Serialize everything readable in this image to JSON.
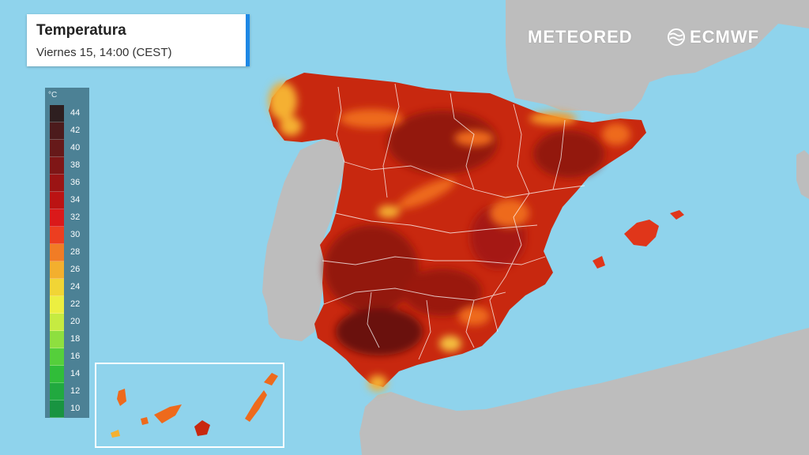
{
  "header": {
    "title": "Temperatura",
    "subtitle": "Viernes 15, 14:00 (CEST)"
  },
  "branding": {
    "meteored": "METEORED",
    "ecmwf": "ECMWF",
    "ecmwf_icon": "ecmwf-logo-icon"
  },
  "legend": {
    "unit": "°C",
    "items": [
      {
        "label": "44",
        "color": "#2b1a1a"
      },
      {
        "label": "42",
        "color": "#4a1616"
      },
      {
        "label": "40",
        "color": "#651313"
      },
      {
        "label": "38",
        "color": "#7f1010"
      },
      {
        "label": "36",
        "color": "#9c0e0e"
      },
      {
        "label": "34",
        "color": "#bd0d0d"
      },
      {
        "label": "32",
        "color": "#dd1414"
      },
      {
        "label": "30",
        "color": "#f03a1a"
      },
      {
        "label": "28",
        "color": "#f57a1f"
      },
      {
        "label": "26",
        "color": "#f7ae28"
      },
      {
        "label": "24",
        "color": "#f5d630"
      },
      {
        "label": "22",
        "color": "#f0f03c"
      },
      {
        "label": "20",
        "color": "#c8ec3c"
      },
      {
        "label": "18",
        "color": "#8ee03a"
      },
      {
        "label": "16",
        "color": "#54cf36"
      },
      {
        "label": "14",
        "color": "#2dbd34"
      },
      {
        "label": "12",
        "color": "#1ea83a"
      },
      {
        "label": "10",
        "color": "#16923c"
      }
    ]
  },
  "colors": {
    "sea": "#8fd3ec",
    "land": "#bdbdbd",
    "heat_main": "#c8280f",
    "heat_dark": "#8a1210",
    "heat_warm": "#ee6a1c",
    "heat_mild": "#f5b030",
    "accent": "#1e88e5"
  }
}
